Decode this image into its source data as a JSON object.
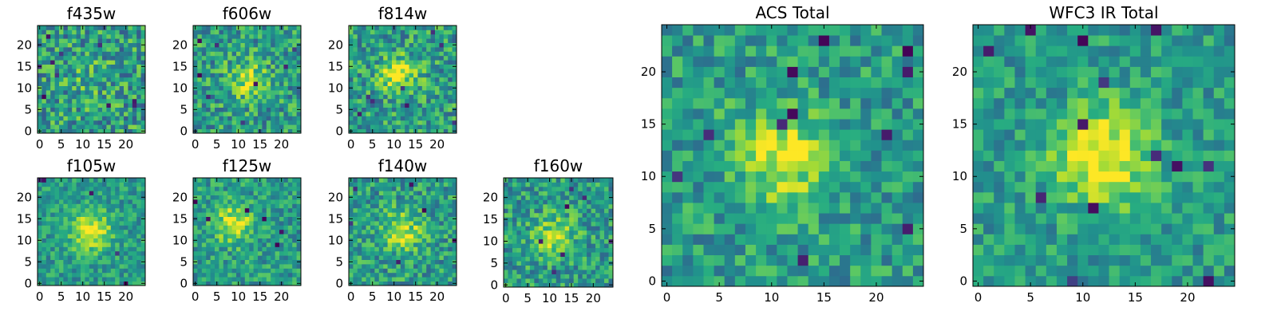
{
  "chart_data": {
    "type": "heatmap",
    "colormap": "viridis",
    "value_range": [
      0,
      1
    ],
    "grid_size": 25,
    "panels": [
      {
        "title": "f435w",
        "xlim": [
          0,
          25
        ],
        "ylim": [
          0,
          25
        ],
        "xticks": [
          0,
          5,
          10,
          15,
          20
        ],
        "yticks": [
          0,
          5,
          10,
          15,
          20
        ],
        "peak": {
          "x": 12,
          "y": 12,
          "amplitude": 0.12
        },
        "noise": 0.55,
        "dark_spots": 10
      },
      {
        "title": "f606w",
        "xlim": [
          0,
          25
        ],
        "ylim": [
          0,
          25
        ],
        "xticks": [
          0,
          5,
          10,
          15,
          20
        ],
        "yticks": [
          0,
          5,
          10,
          15,
          20
        ],
        "peak": {
          "x": 12,
          "y": 12,
          "amplitude": 0.3
        },
        "noise": 0.5,
        "dark_spots": 8
      },
      {
        "title": "f814w",
        "xlim": [
          0,
          25
        ],
        "ylim": [
          0,
          25
        ],
        "xticks": [
          0,
          5,
          10,
          15,
          20
        ],
        "yticks": [
          0,
          5,
          10,
          15,
          20
        ],
        "peak": {
          "x": 11,
          "y": 13,
          "amplitude": 0.35
        },
        "noise": 0.5,
        "dark_spots": 8
      },
      {
        "title": "f105w",
        "xlim": [
          0,
          25
        ],
        "ylim": [
          0,
          25
        ],
        "xticks": [
          0,
          5,
          10,
          15,
          20
        ],
        "yticks": [
          0,
          5,
          10,
          15,
          20
        ],
        "peak": {
          "x": 12,
          "y": 12,
          "amplitude": 0.45
        },
        "noise": 0.35,
        "dark_spots": 5
      },
      {
        "title": "f125w",
        "xlim": [
          0,
          25
        ],
        "ylim": [
          0,
          25
        ],
        "xticks": [
          0,
          5,
          10,
          15,
          20
        ],
        "yticks": [
          0,
          5,
          10,
          15,
          20
        ],
        "peak": {
          "x": 9,
          "y": 14,
          "amplitude": 0.4
        },
        "noise": 0.4,
        "dark_spots": 6
      },
      {
        "title": "f140w",
        "xlim": [
          0,
          25
        ],
        "ylim": [
          0,
          25
        ],
        "xticks": [
          0,
          5,
          10,
          15,
          20
        ],
        "yticks": [
          0,
          5,
          10,
          15,
          20
        ],
        "peak": {
          "x": 12,
          "y": 12,
          "amplitude": 0.35
        },
        "noise": 0.45,
        "dark_spots": 6
      },
      {
        "title": "f160w",
        "xlim": [
          0,
          25
        ],
        "ylim": [
          0,
          25
        ],
        "xticks": [
          0,
          5,
          10,
          15,
          20
        ],
        "yticks": [
          0,
          5,
          10,
          15,
          20
        ],
        "peak": {
          "x": 11,
          "y": 11,
          "amplitude": 0.35
        },
        "noise": 0.45,
        "dark_spots": 7
      },
      {
        "title": "ACS Total",
        "xlim": [
          0,
          25
        ],
        "ylim": [
          0,
          25
        ],
        "xticks": [
          0,
          5,
          10,
          15,
          20
        ],
        "yticks": [
          0,
          5,
          10,
          15,
          20
        ],
        "peak": {
          "x": 11,
          "y": 12,
          "amplitude": 0.4
        },
        "noise": 0.4,
        "dark_spots": 12
      },
      {
        "title": "WFC3 IR Total",
        "xlim": [
          0,
          25
        ],
        "ylim": [
          0,
          25
        ],
        "xticks": [
          0,
          5,
          10,
          15,
          20
        ],
        "yticks": [
          0,
          5,
          10,
          15,
          20
        ],
        "peak": {
          "x": 12,
          "y": 12,
          "amplitude": 0.5
        },
        "noise": 0.35,
        "dark_spots": 14
      }
    ]
  }
}
